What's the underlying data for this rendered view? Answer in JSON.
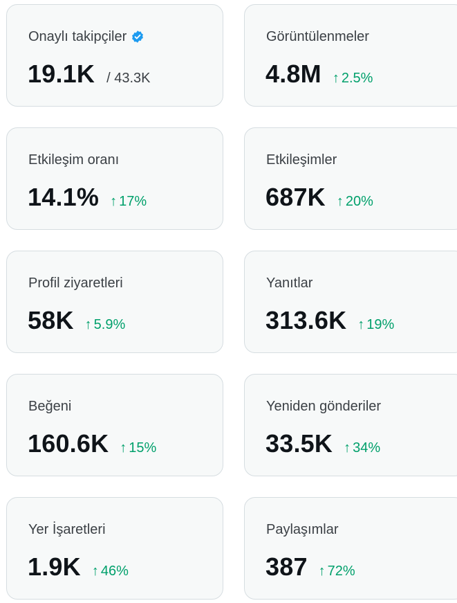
{
  "colors": {
    "card_background": "#f7f9f9",
    "card_border": "#d6dde1",
    "label": "#3b4045",
    "value": "#0f1419",
    "positive_change": "#00a06b",
    "verified_badge": "#1d9bf0"
  },
  "icons": {
    "verified": "verified-badge-icon",
    "change_up": "arrow-up-icon"
  },
  "cards": {
    "verified_followers": {
      "label": "Onaylı takipçiler",
      "value": "19.1K",
      "total": "/ 43.3K"
    },
    "impressions": {
      "label": "Görüntülenmeler",
      "value": "4.8M",
      "change": "2.5%"
    },
    "engagement_rate": {
      "label": "Etkileşim oranı",
      "value": "14.1%",
      "change": "17%"
    },
    "engagements": {
      "label": "Etkileşimler",
      "value": "687K",
      "change": "20%"
    },
    "profile_visits": {
      "label": "Profil ziyaretleri",
      "value": "58K",
      "change": "5.9%"
    },
    "replies": {
      "label": "Yanıtlar",
      "value": "313.6K",
      "change": "19%"
    },
    "likes": {
      "label": "Beğeni",
      "value": "160.6K",
      "change": "15%"
    },
    "reposts": {
      "label": "Yeniden gönderiler",
      "value": "33.5K",
      "change": "34%"
    },
    "bookmarks": {
      "label": "Yer İşaretleri",
      "value": "1.9K",
      "change": "46%"
    },
    "shares": {
      "label": "Paylaşımlar",
      "value": "387",
      "change": "72%"
    }
  }
}
